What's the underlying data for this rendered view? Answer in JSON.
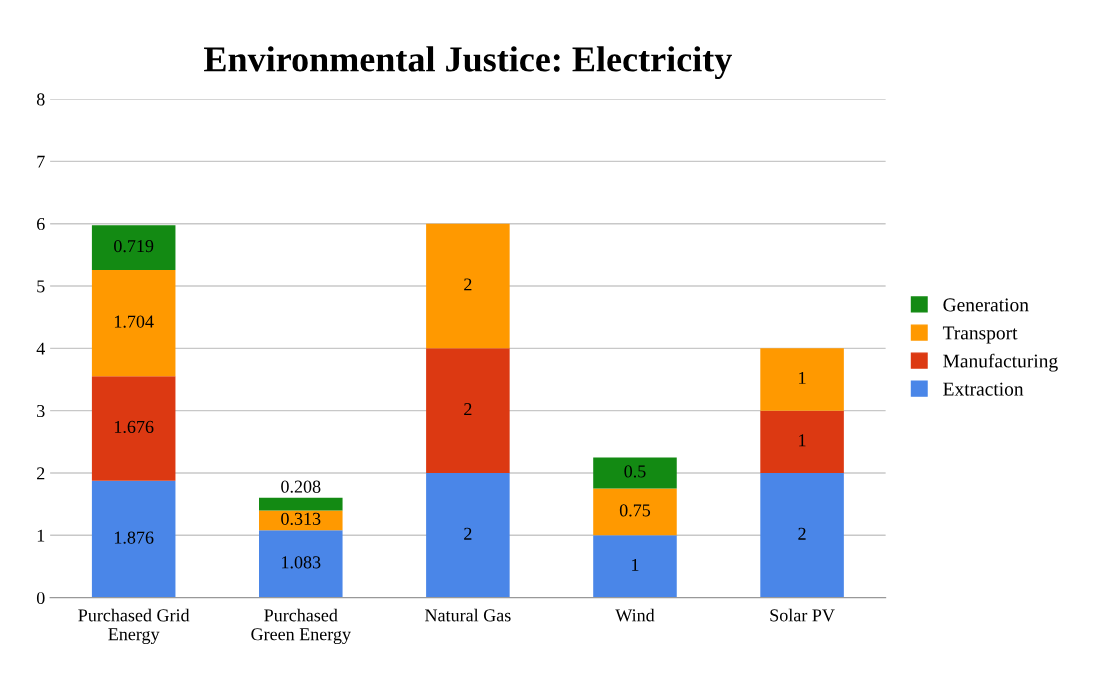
{
  "chart_data": {
    "type": "bar",
    "title": "Environmental Justice: Electricity",
    "stacked": true,
    "categories": [
      "Purchased Grid\nEnergy",
      "Purchased\nGreen Energy",
      "Natural Gas",
      "Wind",
      "Solar PV"
    ],
    "series": [
      {
        "name": "Extraction",
        "color": "#4a86e8",
        "values": [
          1.876,
          1.083,
          2,
          1,
          2
        ]
      },
      {
        "name": "Manufacturing",
        "color": "#dc3912",
        "values": [
          1.676,
          null,
          2,
          null,
          1
        ]
      },
      {
        "name": "Transport",
        "color": "#ff9900",
        "values": [
          1.704,
          0.313,
          2,
          0.75,
          1
        ]
      },
      {
        "name": "Generation",
        "color": "#138a13",
        "values": [
          0.719,
          0.208,
          null,
          0.5,
          null
        ]
      }
    ],
    "ylim": [
      0,
      8
    ],
    "yticks": [
      0,
      1,
      2,
      3,
      4,
      5,
      6,
      7,
      8
    ],
    "grid": "y",
    "legend": "right",
    "data_labels": true
  }
}
